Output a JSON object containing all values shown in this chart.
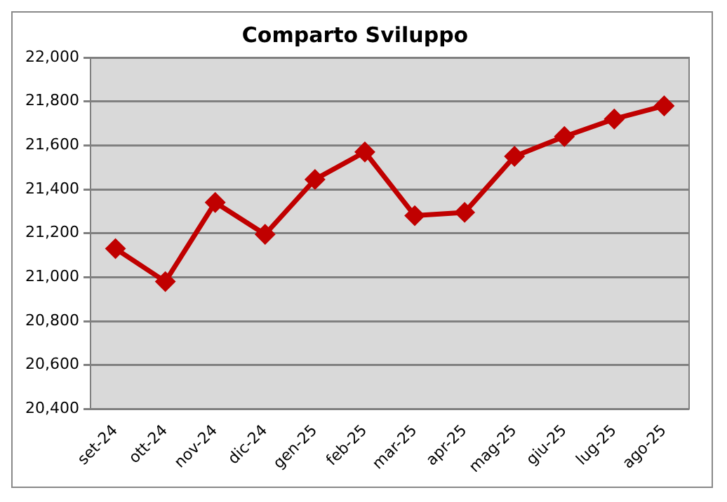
{
  "chart_data": {
    "type": "line",
    "title": "Comparto Sviluppo",
    "categories": [
      "set-24",
      "ott-24",
      "nov-24",
      "dic-24",
      "gen-25",
      "feb-25",
      "mar-25",
      "apr-25",
      "mag-25",
      "giu-25",
      "lug-25",
      "ago-25"
    ],
    "series": [
      {
        "color": "#c00000",
        "values": [
          21130,
          20980,
          21340,
          21195,
          21445,
          21570,
          21280,
          21295,
          21550,
          21640,
          21720,
          21780
        ]
      }
    ],
    "ylim": [
      20400,
      22000
    ],
    "yticks": [
      {
        "value": 20400,
        "label": "20,400"
      },
      {
        "value": 20600,
        "label": "20,600"
      },
      {
        "value": 20800,
        "label": "20,800"
      },
      {
        "value": 21000,
        "label": "21,000"
      },
      {
        "value": 21200,
        "label": "21,200"
      },
      {
        "value": 21400,
        "label": "21,400"
      },
      {
        "value": 21600,
        "label": "21,600"
      },
      {
        "value": 21800,
        "label": "21,800"
      },
      {
        "value": 22000,
        "label": "22,000"
      }
    ],
    "grid": "y",
    "legend": false,
    "marker": "diamond",
    "line_style": "solid"
  }
}
